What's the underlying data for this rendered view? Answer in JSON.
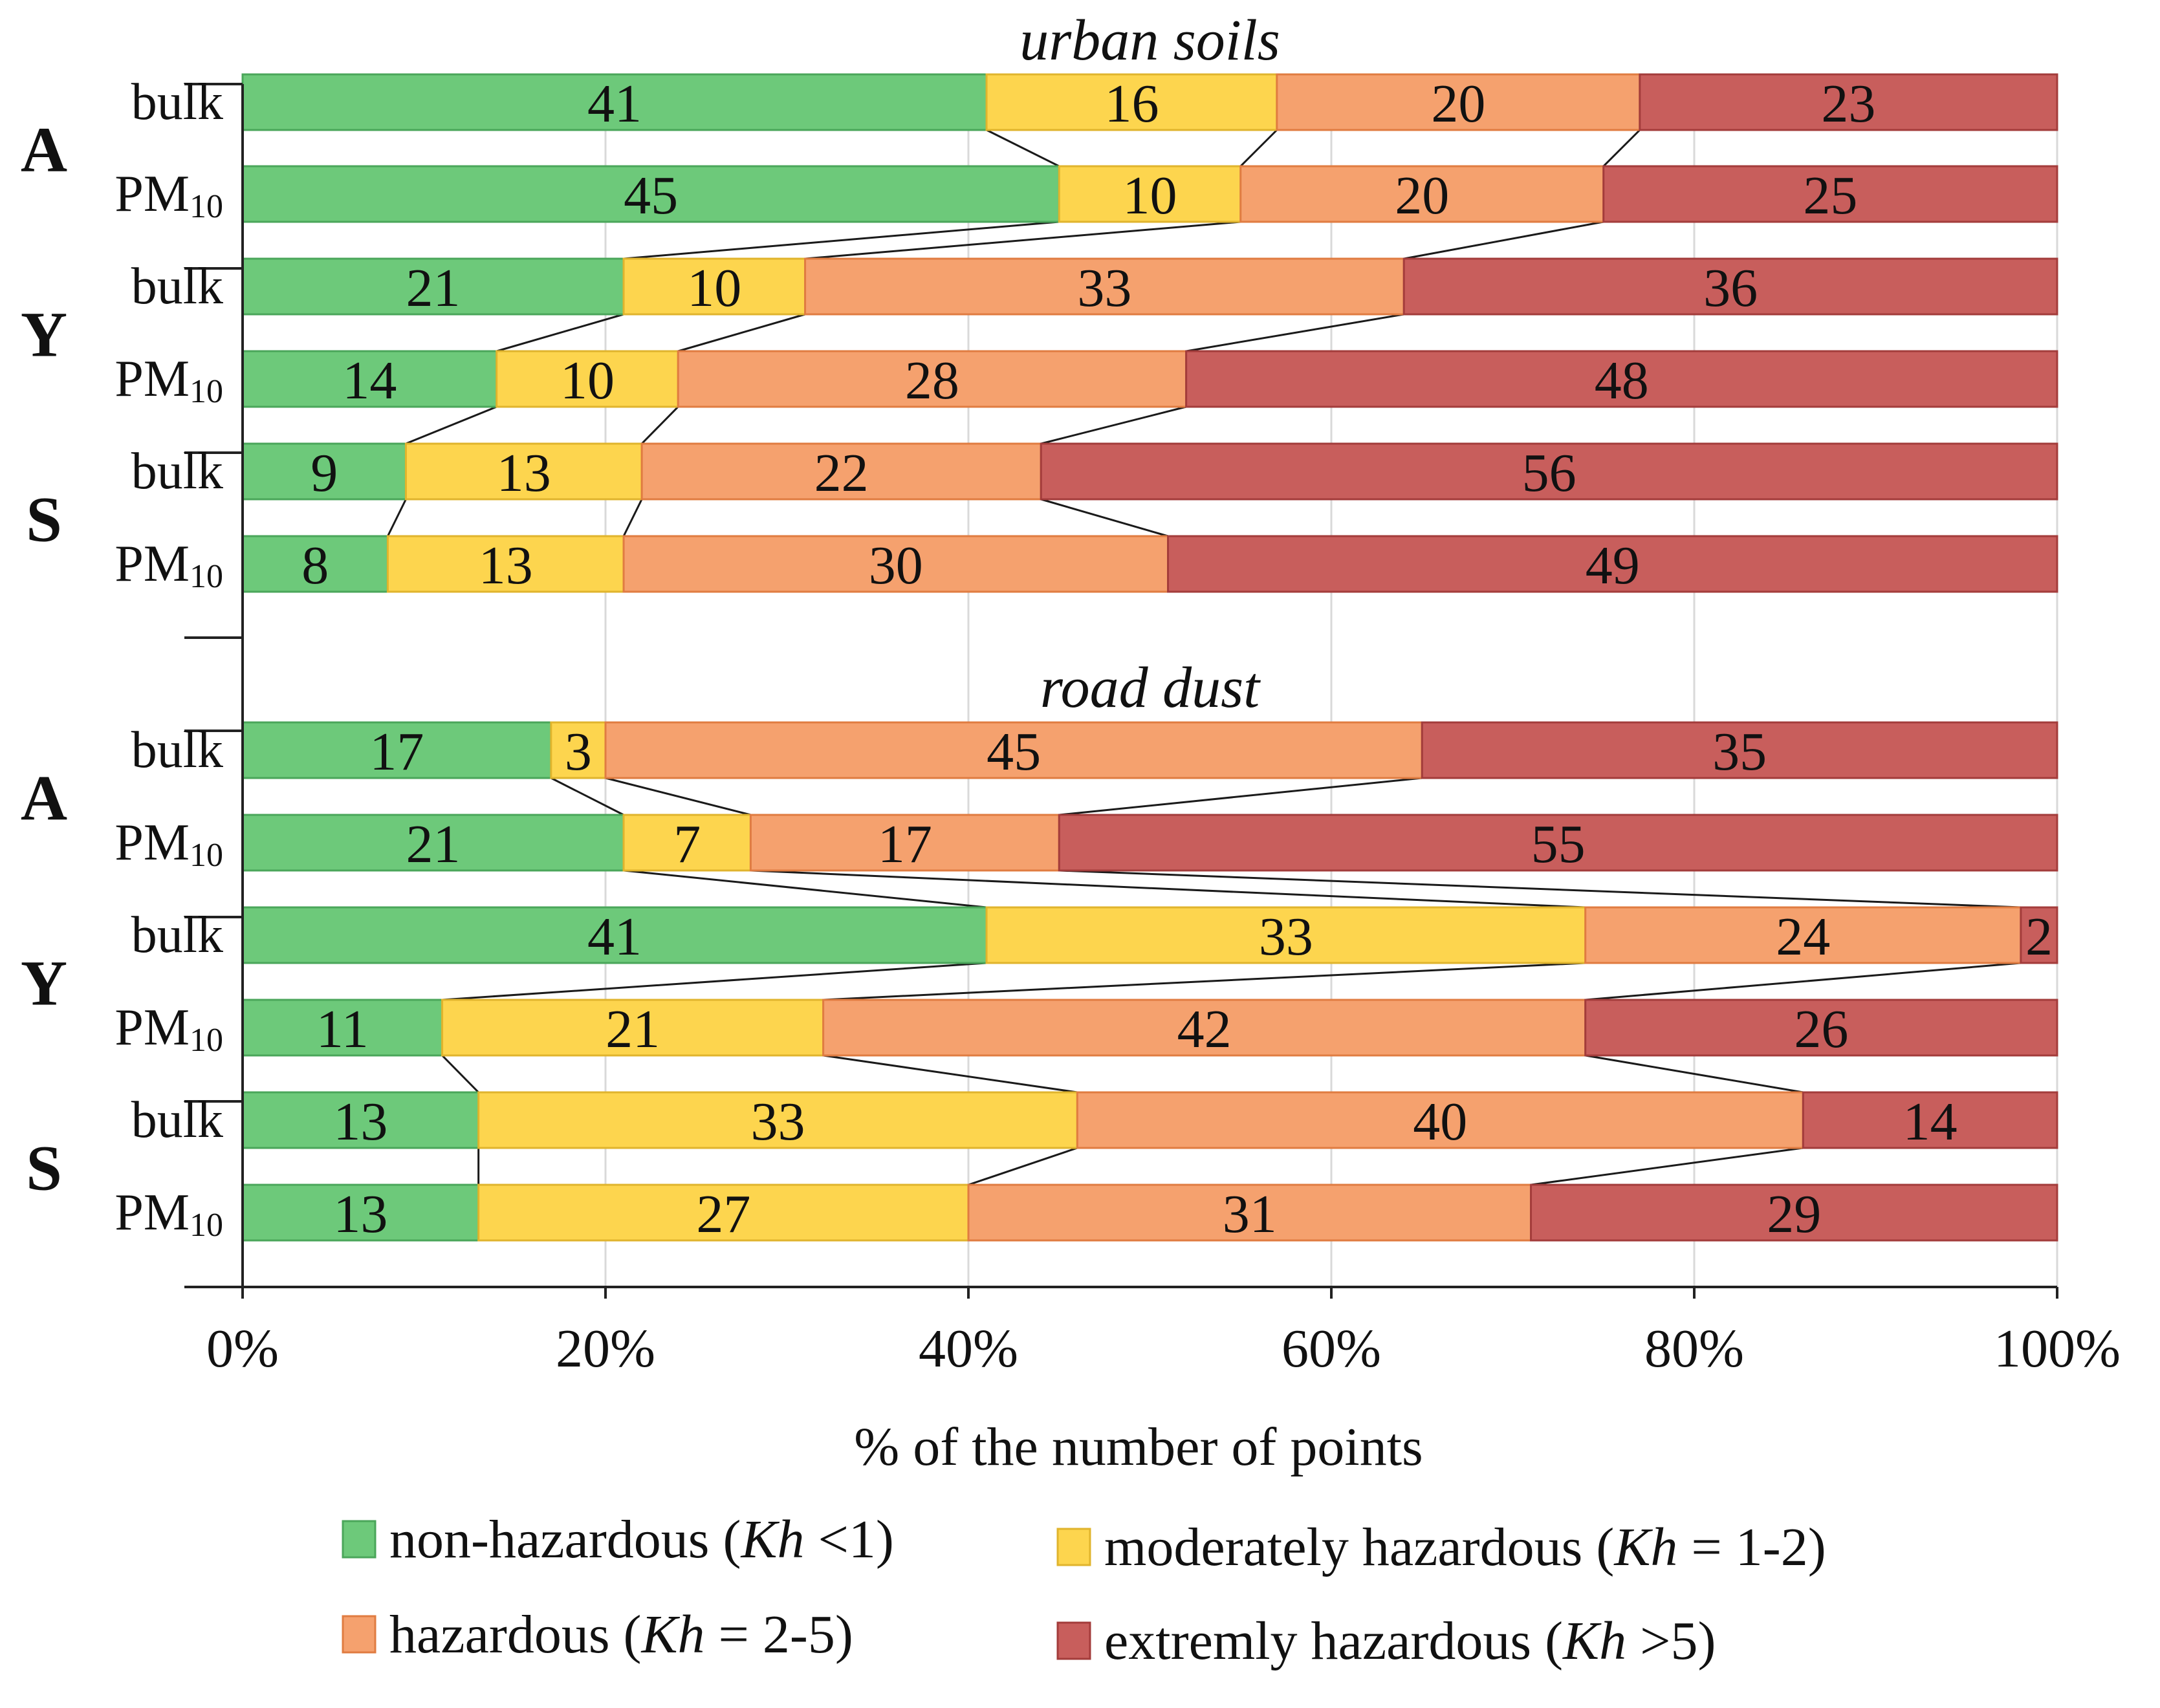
{
  "chart_data": {
    "type": "bar",
    "orientation": "horizontal",
    "stacked": true,
    "xlabel": "% of the number of points",
    "xlim": [
      0,
      100
    ],
    "xticks": [
      "0%",
      "20%",
      "40%",
      "60%",
      "80%",
      "100%"
    ],
    "grid": true,
    "legend_position": "bottom",
    "series": [
      {
        "key": "non",
        "name": "non-hazardous",
        "kh": "Kh",
        "crit": " <1",
        "color": "#6dc97a",
        "border": "#4aa65a"
      },
      {
        "key": "mod",
        "name": "moderately hazardous",
        "kh": "Kh",
        "crit": " = 1-2",
        "color": "#fdd54e",
        "border": "#e0b42d"
      },
      {
        "key": "haz",
        "name": "hazardous",
        "kh": "Kh",
        "crit": " = 2-5",
        "color": "#f5a16e",
        "border": "#e07c41"
      },
      {
        "key": "ext",
        "name": "extremly hazardous",
        "kh": "Kh",
        "crit": " >5",
        "color": "#c85e5c",
        "border": "#a33c3b"
      }
    ],
    "sections": [
      {
        "title": "urban soils",
        "groups": [
          {
            "label": "A",
            "rows": [
              {
                "label": "bulk",
                "sub": "",
                "values": [
                  41,
                  16,
                  20,
                  23
                ]
              },
              {
                "label": "PM",
                "sub": "10",
                "values": [
                  45,
                  10,
                  20,
                  25
                ]
              }
            ]
          },
          {
            "label": "Y",
            "rows": [
              {
                "label": "bulk",
                "sub": "",
                "values": [
                  21,
                  10,
                  33,
                  36
                ]
              },
              {
                "label": "PM",
                "sub": "10",
                "values": [
                  14,
                  10,
                  28,
                  48
                ]
              }
            ]
          },
          {
            "label": "S",
            "rows": [
              {
                "label": "bulk",
                "sub": "",
                "values": [
                  9,
                  13,
                  22,
                  56
                ]
              },
              {
                "label": "PM",
                "sub": "10",
                "values": [
                  8,
                  13,
                  30,
                  49
                ]
              }
            ]
          }
        ]
      },
      {
        "title": "road dust",
        "groups": [
          {
            "label": "A",
            "rows": [
              {
                "label": "bulk",
                "sub": "",
                "values": [
                  17,
                  3,
                  45,
                  35
                ]
              },
              {
                "label": "PM",
                "sub": "10",
                "values": [
                  21,
                  7,
                  17,
                  55
                ]
              }
            ]
          },
          {
            "label": "Y",
            "rows": [
              {
                "label": "bulk",
                "sub": "",
                "values": [
                  41,
                  33,
                  24,
                  2
                ]
              },
              {
                "label": "PM",
                "sub": "10",
                "values": [
                  11,
                  21,
                  42,
                  26
                ]
              }
            ]
          },
          {
            "label": "S",
            "rows": [
              {
                "label": "bulk",
                "sub": "",
                "values": [
                  13,
                  33,
                  40,
                  14
                ]
              },
              {
                "label": "PM",
                "sub": "10",
                "values": [
                  13,
                  27,
                  31,
                  29
                ]
              }
            ]
          }
        ]
      }
    ]
  }
}
